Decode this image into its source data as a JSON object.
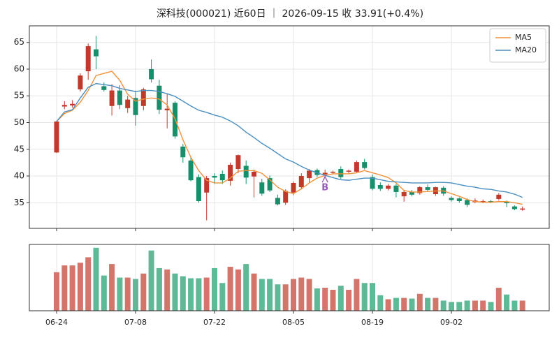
{
  "chart_data": {
    "type": "candlestick",
    "title": "深科技(000021) 近60日 ｜ 2026-09-15 收 33.91(+0.4%)",
    "categories": [
      "06-24",
      null,
      null,
      null,
      null,
      null,
      null,
      null,
      null,
      null,
      "07-08",
      null,
      null,
      null,
      null,
      null,
      null,
      null,
      null,
      null,
      "07-22",
      null,
      null,
      null,
      null,
      null,
      null,
      null,
      null,
      null,
      "08-05",
      null,
      null,
      null,
      null,
      null,
      null,
      null,
      null,
      null,
      "08-19",
      null,
      null,
      null,
      null,
      null,
      null,
      null,
      null,
      null,
      "09-02",
      null,
      null,
      null,
      null,
      null,
      null,
      null,
      null,
      null
    ],
    "open": [
      44.4,
      53.0,
      53.2,
      56.2,
      59.6,
      63.7,
      56.8,
      53.1,
      56.0,
      52.7,
      54.6,
      53.1,
      60.0,
      56.9,
      52.3,
      53.7,
      45.5,
      42.9,
      39.8,
      36.9,
      40.0,
      40.4,
      39.1,
      41.3,
      41.9,
      39.9,
      38.8,
      39.6,
      35.9,
      35.0,
      36.9,
      37.9,
      39.6,
      41.1,
      40.3,
      40.6,
      41.3,
      40.8,
      40.8,
      42.6,
      39.8,
      38.3,
      37.6,
      38.2,
      36.2,
      37.0,
      36.8,
      37.9,
      36.6,
      37.8,
      35.9,
      35.8,
      35.5,
      35.1,
      35.1,
      35.3,
      35.7,
      35.1,
      34.3,
      33.7
    ],
    "high": [
      50.3,
      54.0,
      54.2,
      59.2,
      64.8,
      66.2,
      57.5,
      57.2,
      57.0,
      55.0,
      56.0,
      56.5,
      61.8,
      58.0,
      55.3,
      54.0,
      46.0,
      43.5,
      40.3,
      40.0,
      40.5,
      41.0,
      42.5,
      44.0,
      42.9,
      41.2,
      39.5,
      40.1,
      36.5,
      37.5,
      39.0,
      40.5,
      41.3,
      41.4,
      41.2,
      41.0,
      41.8,
      41.2,
      42.9,
      43.2,
      40.3,
      38.8,
      38.5,
      38.5,
      37.3,
      37.4,
      38.1,
      38.4,
      38.0,
      38.1,
      36.2,
      36.0,
      35.8,
      35.8,
      35.6,
      35.5,
      36.8,
      35.4,
      34.5,
      34.3
    ],
    "low": [
      44.3,
      52.5,
      52.8,
      55.8,
      58.0,
      60.0,
      55.8,
      51.3,
      52.5,
      51.8,
      49.4,
      52.3,
      57.5,
      51.6,
      48.9,
      47.0,
      42.5,
      39.0,
      35.0,
      31.7,
      38.5,
      38.5,
      38.2,
      40.5,
      38.5,
      36.0,
      36.3,
      37.0,
      34.5,
      34.6,
      36.4,
      37.5,
      38.8,
      39.8,
      39.9,
      40.3,
      39.5,
      40.5,
      40.5,
      41.2,
      37.3,
      37.2,
      37.3,
      36.0,
      35.2,
      36.2,
      36.5,
      37.1,
      36.3,
      36.3,
      35.2,
      35.0,
      34.2,
      34.9,
      34.9,
      34.9,
      35.4,
      34.2,
      33.6,
      33.5
    ],
    "close": [
      50.2,
      53.3,
      53.5,
      58.8,
      64.3,
      62.4,
      56.1,
      56.0,
      53.3,
      54.3,
      51.4,
      56.2,
      58.1,
      52.4,
      52.6,
      47.4,
      43.5,
      39.2,
      35.3,
      39.6,
      39.7,
      39.2,
      42.1,
      43.9,
      39.7,
      40.8,
      36.7,
      37.3,
      34.7,
      37.2,
      38.7,
      40.0,
      41.0,
      40.2,
      40.6,
      40.8,
      39.8,
      41.0,
      42.6,
      41.5,
      37.6,
      37.6,
      38.2,
      37.0,
      37.0,
      36.5,
      37.9,
      37.4,
      37.9,
      36.7,
      35.5,
      35.3,
      34.6,
      35.4,
      35.3,
      35.1,
      36.5,
      34.9,
      33.8,
      33.91
    ],
    "series": [
      {
        "name": "MA5",
        "color": "#f0913a",
        "values": [
          50.2,
          51.7,
          52.3,
          53.8,
          56.0,
          58.8,
          59.2,
          59.6,
          57.9,
          55.3,
          54.0,
          54.4,
          54.6,
          54.4,
          53.3,
          50.7,
          46.8,
          43.5,
          41.0,
          39.2,
          38.7,
          38.7,
          39.6,
          40.9,
          41.0,
          41.0,
          40.5,
          39.3,
          37.9,
          37.1,
          36.7,
          37.6,
          38.7,
          39.6,
          40.1,
          40.4,
          40.4,
          40.4,
          40.6,
          41.0,
          40.6,
          40.2,
          39.7,
          38.7,
          37.3,
          37.0,
          37.0,
          37.1,
          37.2,
          37.2,
          36.7,
          36.2,
          35.6,
          35.2,
          35.1,
          35.1,
          35.2,
          35.2,
          35.0,
          34.7
        ]
      },
      {
        "name": "MA20",
        "color": "#4a8fc0",
        "values": [
          50.2,
          52.0,
          52.4,
          54.6,
          56.6,
          57.3,
          57.1,
          56.9,
          56.4,
          56.1,
          55.8,
          56.0,
          56.0,
          55.8,
          55.4,
          54.9,
          54.0,
          53.1,
          52.3,
          51.9,
          51.4,
          51.0,
          50.3,
          49.4,
          48.2,
          47.2,
          46.1,
          45.2,
          44.2,
          43.2,
          42.6,
          41.8,
          41.1,
          40.6,
          40.1,
          39.7,
          39.3,
          39.2,
          39.4,
          39.6,
          39.6,
          39.3,
          39.0,
          38.9,
          38.8,
          38.7,
          38.7,
          38.7,
          38.8,
          38.8,
          38.7,
          38.4,
          38.1,
          37.9,
          37.6,
          37.5,
          37.2,
          37.0,
          36.6,
          36.0
        ]
      }
    ],
    "volume": [
      57,
      67,
      67,
      71,
      79,
      93,
      52,
      69,
      49,
      49,
      47,
      55,
      89,
      63,
      61,
      55,
      51,
      48,
      48,
      49,
      63,
      41,
      65,
      61,
      69,
      55,
      47,
      47,
      39,
      39,
      47,
      49,
      47,
      33,
      34,
      31,
      37,
      31,
      47,
      41,
      41,
      23,
      17,
      19,
      19,
      18,
      25,
      19,
      19,
      15,
      13,
      13,
      15,
      15,
      15,
      13,
      34,
      24,
      15,
      15
    ],
    "up_color": "#c0392b",
    "down_color": "#16906b",
    "volume_up_color": "#d4756b",
    "volume_down_color": "#5fb896",
    "ylim": [
      30.2,
      68.1
    ],
    "yticks": [
      35,
      40,
      45,
      50,
      55,
      60,
      65
    ],
    "volume_ylim": [
      0,
      98
    ],
    "grid": true,
    "legend": "upper right",
    "annotations": [
      {
        "text": "B",
        "index": 34,
        "value": 38.3,
        "color": "#9b59b6"
      }
    ]
  }
}
